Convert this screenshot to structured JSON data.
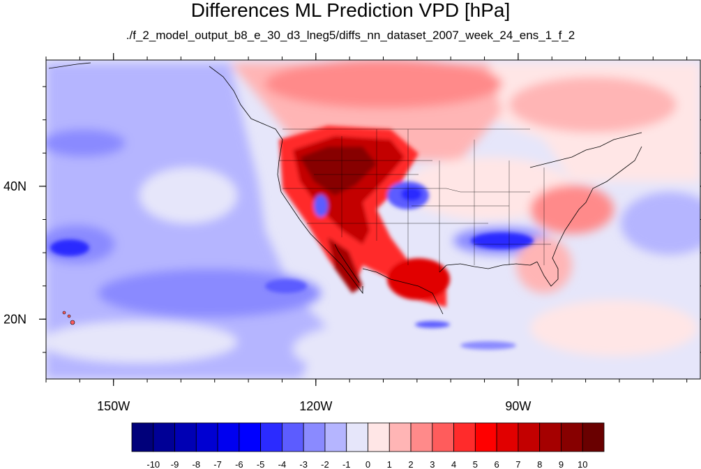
{
  "title": "Differences ML Prediction VPD [hPa]",
  "subtitle": "./f_2_model_output_b8_e_30_d3_lneg5/diffs_nn_dataset_2007_week_24_ens_1_f_2",
  "map": {
    "projection": "lat-lon",
    "lon_range": [
      -160,
      -63
    ],
    "lat_range": [
      11,
      59
    ],
    "lon_ticks": [
      "150W",
      "120W",
      "90W"
    ],
    "lat_ticks": [
      "40N",
      "20N"
    ],
    "field": "VPD difference",
    "units": "hPa"
  },
  "colorbar": {
    "labels": [
      "-10",
      "-9",
      "-8",
      "-7",
      "-6",
      "-5",
      "-4",
      "-3",
      "-2",
      "-1",
      "0",
      "1",
      "2",
      "3",
      "4",
      "5",
      "6",
      "7",
      "8",
      "9",
      "10"
    ],
    "colors": [
      "#00007a",
      "#000096",
      "#0000b4",
      "#0000d2",
      "#0000f0",
      "#0000ff",
      "#2b2bff",
      "#5c5cff",
      "#8a8aff",
      "#b5b5ff",
      "#e6e6fa",
      "#ffe6e6",
      "#ffb5b5",
      "#ff8a8a",
      "#ff5c5c",
      "#ff2b2b",
      "#ff0000",
      "#e10000",
      "#c30000",
      "#a50000",
      "#870000",
      "#690000"
    ]
  }
}
